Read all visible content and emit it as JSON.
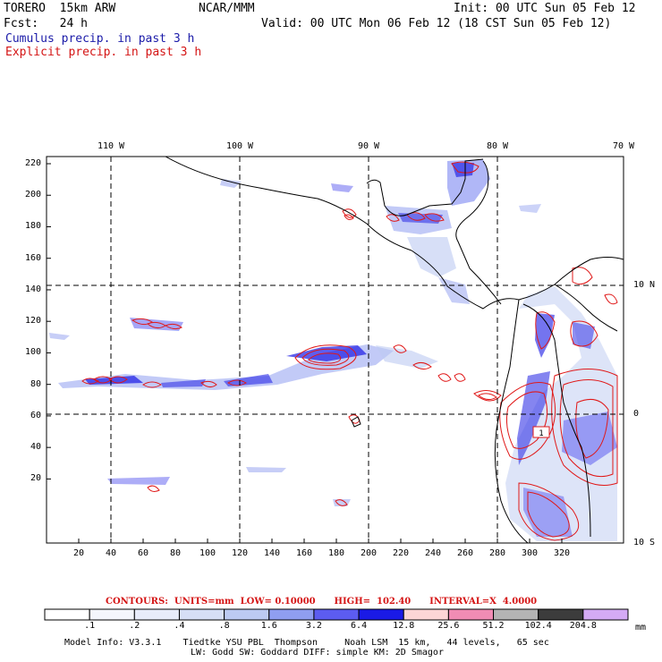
{
  "header": {
    "model": "TORERO  15km ARW",
    "org": "NCAR/MMM",
    "init": "Init: 00 UTC Sun 05 Feb 12",
    "fcst": "Fcst:   24 h",
    "valid": "Valid: 00 UTC Mon 06 Feb 12 (18 CST Sun 05 Feb 12)",
    "cumulus": "Cumulus precip. in past 3 h",
    "explicit": "Explicit precip. in past 3 h"
  },
  "axes": {
    "top_lon": [
      "110 W",
      "100 W",
      "90 W",
      "80 W",
      "70 W"
    ],
    "right_lat": [
      "10 N",
      "0",
      "10 S"
    ],
    "left_y": [
      "220",
      "200",
      "180",
      "160",
      "140",
      "120",
      "100",
      "80",
      "60",
      "40",
      "20"
    ],
    "bottom_x": [
      "20",
      "40",
      "60",
      "80",
      "100",
      "120",
      "140",
      "160",
      "180",
      "200",
      "220",
      "240",
      "260",
      "280",
      "300",
      "320"
    ]
  },
  "contour_info": {
    "label": "CONTOURS:  UNITS=mm  LOW= 0.10000      HIGH=  102.40      INTERVAL=X  4.0000"
  },
  "colorbar": {
    "labels": [
      ".1",
      ".2",
      ".4",
      ".8",
      "1.6",
      "3.2",
      "6.4",
      "12.8",
      "25.6",
      "51.2",
      "102.4",
      "204.8"
    ],
    "unit": "mm",
    "colors": [
      "#ffffff",
      "#f4f6fc",
      "#e8ecfa",
      "#d6def6",
      "#bccaf2",
      "#8f9ef0",
      "#5c5cf0",
      "#1a1ae6",
      "#fcd6d6",
      "#f08cb4",
      "#b4b4b4",
      "#3c3c3c",
      "#d4aaf4"
    ]
  },
  "label_box": "1",
  "footer": {
    "line1": "Model Info: V3.3.1    Tiedtke YSU PBL  Thompson     Noah LSM  15 km,   44 levels,   65 sec",
    "line2": "LW: Godd SW: Goddard DIFF: simple KM: 2D Smagor"
  }
}
